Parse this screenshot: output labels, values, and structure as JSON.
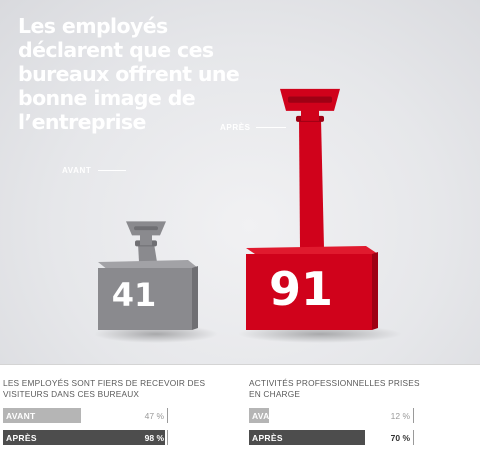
{
  "headline": "Les employés déclarent que ces bureaux offrent une bonne image de l’entreprise",
  "chart_data": {
    "type": "bar",
    "title": "Les employés déclarent que ces bureaux offrent une bonne image de l’entreprise",
    "categories": [
      "AVANT",
      "APRÈS"
    ],
    "values": [
      41,
      91
    ],
    "colors": [
      "#8a8a8e",
      "#d0021b"
    ]
  },
  "stats": [
    {
      "title": "LES EMPLOYÉS SONT FIERS DE RECEVOIR DES VISITEURS DANS CES BUREAUX",
      "rows": [
        {
          "label": "AVANT",
          "value": 47,
          "display": "47 %"
        },
        {
          "label": "APRÈS",
          "value": 98,
          "display": "98 %"
        }
      ]
    },
    {
      "title": "ACTIVITÉS PROFESSIONNELLES PRISES EN CHARGE",
      "rows": [
        {
          "label": "AVANT",
          "value": 12,
          "display": "12 %"
        },
        {
          "label": "APRÈS",
          "value": 70,
          "display": "70 %"
        }
      ]
    }
  ]
}
